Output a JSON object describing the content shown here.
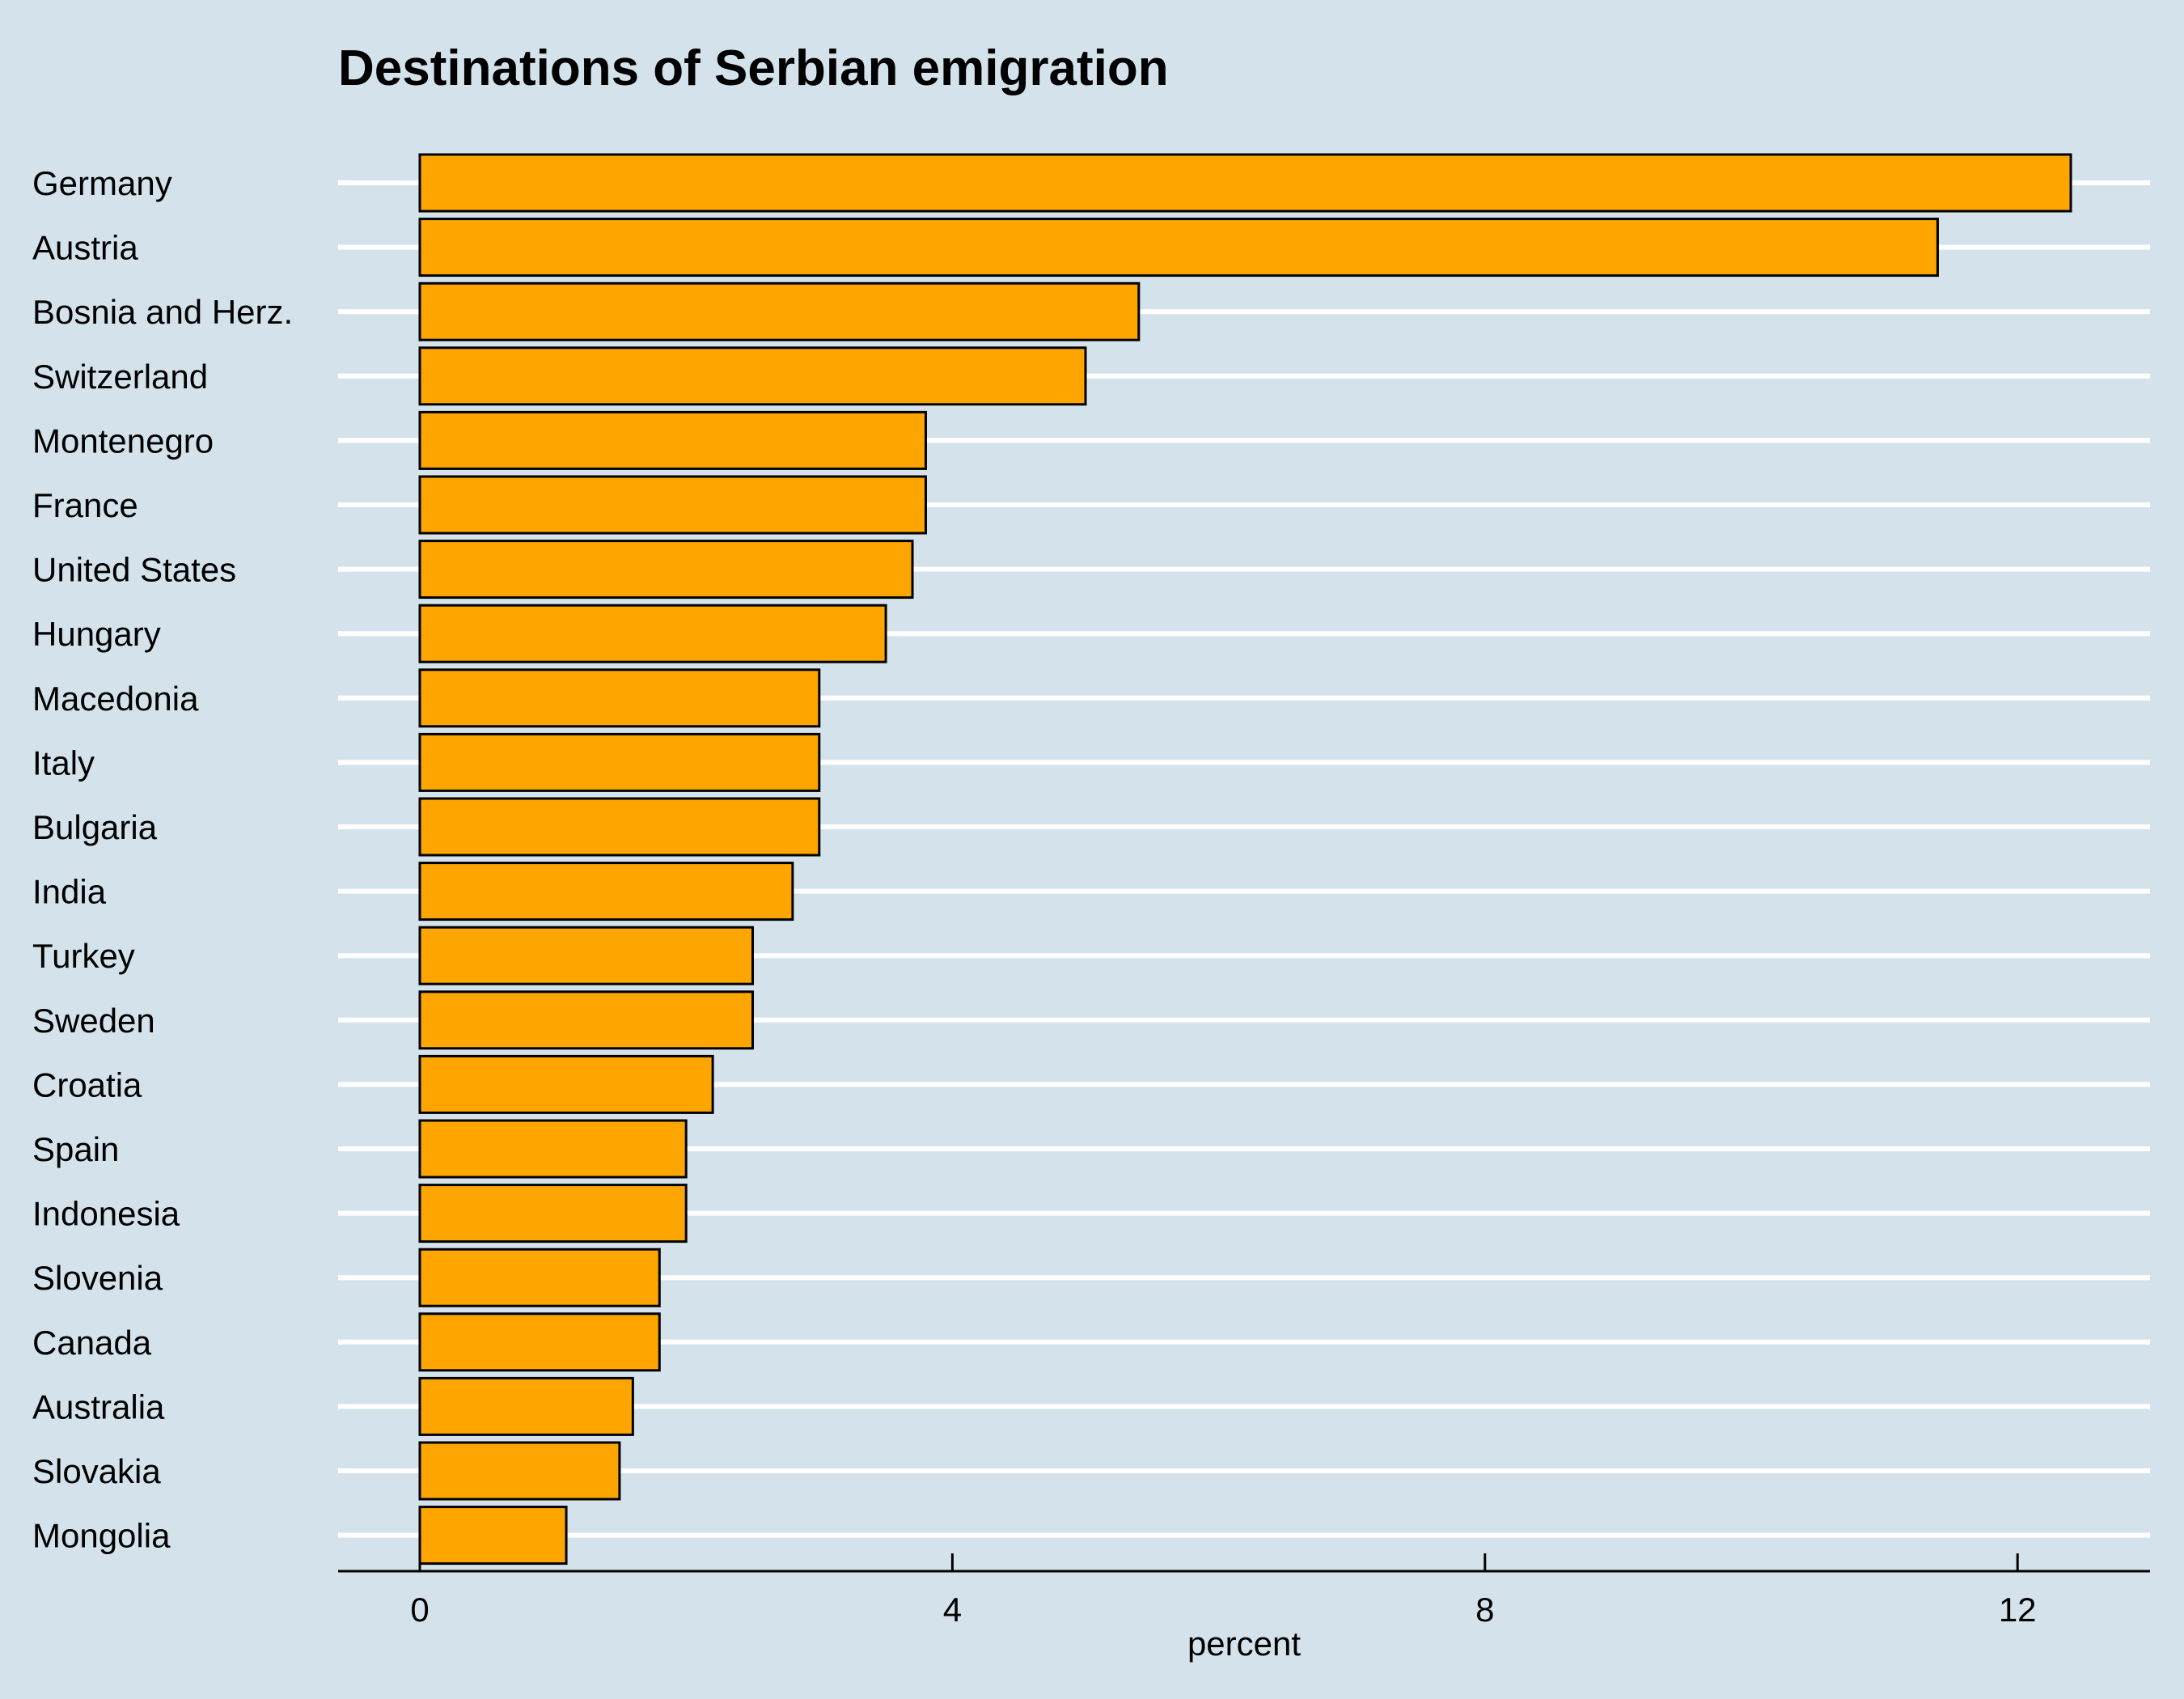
{
  "chart_data": {
    "type": "bar",
    "orientation": "horizontal",
    "title": "Destinations of Serbian emigration",
    "xlabel": "percent",
    "ylabel": "",
    "categories": [
      "Germany",
      "Austria",
      "Bosnia and Herz.",
      "Switzerland",
      "Montenegro",
      "France",
      "United States",
      "Hungary",
      "Macedonia",
      "Italy",
      "Bulgaria",
      "India",
      "Turkey",
      "Sweden",
      "Croatia",
      "Spain",
      "Indonesia",
      "Slovenia",
      "Canada",
      "Australia",
      "Slovakia",
      "Mongolia"
    ],
    "values": [
      12.4,
      11.4,
      5.4,
      5.0,
      3.8,
      3.8,
      3.7,
      3.5,
      3.0,
      3.0,
      3.0,
      2.8,
      2.5,
      2.5,
      2.2,
      2.0,
      2.0,
      1.8,
      1.8,
      1.6,
      1.5,
      1.1
    ],
    "xlim": [
      0,
      12.4
    ],
    "xticks": [
      0,
      4,
      8,
      12
    ],
    "grid": "horizontal",
    "legend": "none",
    "colors": {
      "background": "#d4e3eb",
      "bar_fill": "#ffa500",
      "bar_stroke": "#000000",
      "gridline": "#ffffff",
      "text": "#000000"
    }
  }
}
